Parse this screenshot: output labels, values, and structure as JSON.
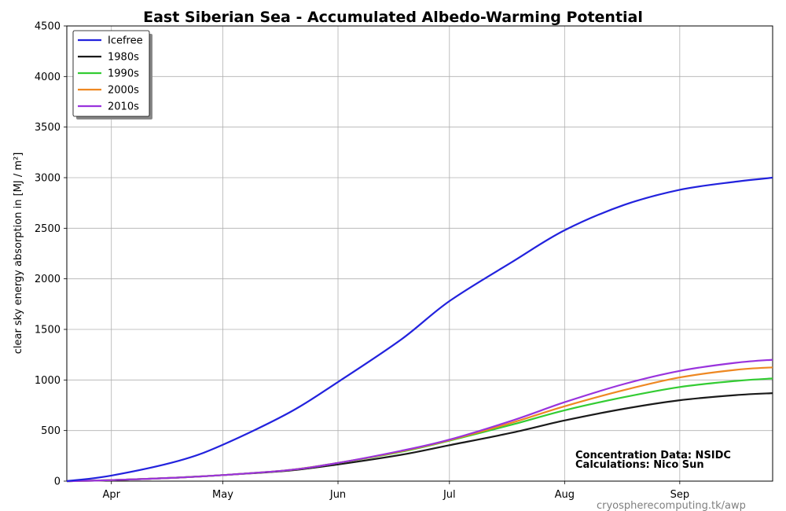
{
  "chart_data": {
    "type": "line",
    "title": "East Siberian Sea - Accumulated Albedo-Warming Potential",
    "xlabel": "",
    "ylabel": "clear sky energy absorption in  [MJ / m²]",
    "x_ticks": [
      "Apr",
      "May",
      "Jun",
      "Jul",
      "Aug",
      "Sep"
    ],
    "x_tick_day": [
      92,
      122,
      153,
      183,
      214,
      245
    ],
    "xlim_day": [
      80,
      270
    ],
    "ylim": [
      0,
      4500
    ],
    "y_ticks": [
      "0",
      "500",
      "1000",
      "1500",
      "2000",
      "2500",
      "3000",
      "3500",
      "4000",
      "4500"
    ],
    "grid": true,
    "legend_position": "top-left",
    "x": [
      80,
      92,
      110,
      122,
      140,
      153,
      170,
      183,
      200,
      214,
      230,
      245,
      260,
      270
    ],
    "series": [
      {
        "name": "Icefree",
        "color": "#2222dd",
        "values": [
          0,
          55,
          200,
          360,
          680,
          980,
          1400,
          1780,
          2170,
          2480,
          2730,
          2880,
          2960,
          3000
        ]
      },
      {
        "name": "1980s",
        "color": "#1a1a1a",
        "values": [
          0,
          10,
          35,
          60,
          105,
          165,
          260,
          355,
          480,
          600,
          715,
          800,
          850,
          870
        ]
      },
      {
        "name": "1990s",
        "color": "#33cc33",
        "values": [
          0,
          10,
          35,
          60,
          110,
          180,
          290,
          400,
          560,
          700,
          830,
          930,
          990,
          1015
        ]
      },
      {
        "name": "2000s",
        "color": "#ee8822",
        "values": [
          0,
          10,
          35,
          60,
          110,
          180,
          295,
          405,
          580,
          740,
          900,
          1025,
          1100,
          1125
        ]
      },
      {
        "name": "2010s",
        "color": "#9933dd",
        "values": [
          0,
          10,
          35,
          60,
          110,
          180,
          300,
          410,
          600,
          780,
          960,
          1090,
          1170,
          1200
        ]
      }
    ],
    "annotations": [
      "Concentration Data: NSIDC",
      "Calculations: Nico Sun"
    ]
  },
  "footer": "cryospherecomputing.tk/awp"
}
